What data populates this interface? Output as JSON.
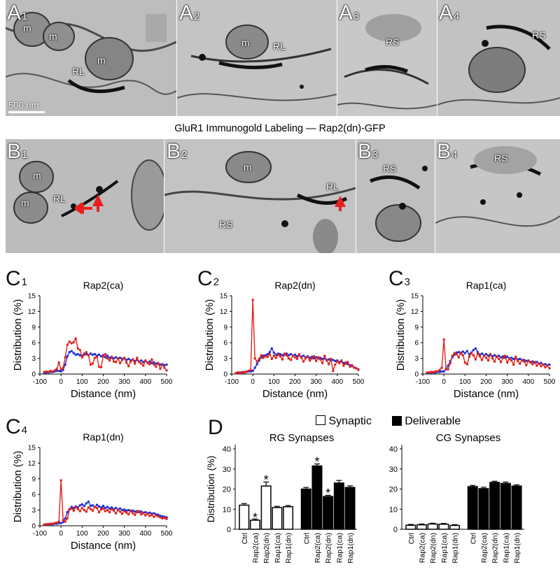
{
  "micrographs": {
    "rowA": [
      {
        "label": "A",
        "sub": "1",
        "tags": [
          "m",
          "m",
          "m",
          "RL"
        ]
      },
      {
        "label": "A",
        "sub": "2",
        "tags": [
          "m",
          "RL"
        ]
      },
      {
        "label": "A",
        "sub": "3",
        "tags": [
          "RS"
        ]
      },
      {
        "label": "A",
        "sub": "4",
        "tags": [
          "RS"
        ]
      }
    ],
    "rowB": [
      {
        "label": "B",
        "sub": "1",
        "tags": [
          "m",
          "m",
          "RL"
        ]
      },
      {
        "label": "B",
        "sub": "2",
        "tags": [
          "m",
          "RS",
          "RL"
        ]
      },
      {
        "label": "B",
        "sub": "3",
        "tags": [
          "RS"
        ]
      },
      {
        "label": "B",
        "sub": "4",
        "tags": [
          "RS"
        ]
      }
    ],
    "scale_bar": "500 nm",
    "caption": "GluR1 Immunogold Labeling — Rap2(dn)-GFP",
    "arrow_color": "#e8201e"
  },
  "line_panels": {
    "ylabel": "Distribution (%)",
    "xlabel": "Distance (nm)",
    "xticks": [
      "-100",
      "0",
      "100",
      "200",
      "300",
      "400",
      "500"
    ],
    "yticks": [
      "0",
      "3",
      "6",
      "9",
      "12",
      "15"
    ],
    "colors": {
      "red": "#e0231c",
      "blue": "#1f2fd6"
    }
  },
  "bar_legend": {
    "synaptic": "Synaptic",
    "deliverable": "Deliverable"
  },
  "chart_data": [
    {
      "panel": "C1",
      "type": "line",
      "title": "Rap2(ca)",
      "xlabel": "Distance (nm)",
      "ylabel": "Distribution (%)",
      "xlim": [
        -100,
        500
      ],
      "ylim": [
        0,
        15
      ],
      "x": [
        -80,
        -70,
        -60,
        -50,
        -40,
        -30,
        -20,
        -10,
        0,
        10,
        20,
        30,
        40,
        50,
        60,
        70,
        80,
        90,
        100,
        110,
        120,
        130,
        140,
        150,
        160,
        170,
        180,
        190,
        200,
        210,
        220,
        230,
        240,
        250,
        260,
        270,
        280,
        290,
        300,
        310,
        320,
        330,
        340,
        350,
        360,
        370,
        380,
        390,
        400,
        410,
        420,
        430,
        440,
        450,
        460,
        470,
        480,
        490,
        500
      ],
      "series": [
        {
          "color": "red",
          "values": [
            0.4,
            0.5,
            0.4,
            0.6,
            0.5,
            0.7,
            1.0,
            2.2,
            0.9,
            1.2,
            3.2,
            5.6,
            6.2,
            5.9,
            6.1,
            6.8,
            4.9,
            4.6,
            3.2,
            3.7,
            4.2,
            3.6,
            1.8,
            2.0,
            3.1,
            3.3,
            1.4,
            1.3,
            3.4,
            3.8,
            3.0,
            2.6,
            3.2,
            2.4,
            2.3,
            3.0,
            2.1,
            2.7,
            3.1,
            2.2,
            1.5,
            2.4,
            2.8,
            2.0,
            3.1,
            2.3,
            2.0,
            1.6,
            2.6,
            2.1,
            1.9,
            2.8,
            1.8,
            1.4,
            2.1,
            1.0,
            1.8,
            1.2,
            0.7
          ]
        },
        {
          "color": "blue",
          "values": [
            0.2,
            0.3,
            0.3,
            0.4,
            0.4,
            0.5,
            0.6,
            0.6,
            0.5,
            0.8,
            1.8,
            3.4,
            4.2,
            4.4,
            4.0,
            3.7,
            3.8,
            3.6,
            3.5,
            3.9,
            3.8,
            3.6,
            3.9,
            3.7,
            3.8,
            3.5,
            3.7,
            3.4,
            3.6,
            3.2,
            3.5,
            3.1,
            3.3,
            3.0,
            3.2,
            3.0,
            3.1,
            2.9,
            3.0,
            2.7,
            2.9,
            2.6,
            2.8,
            2.5,
            2.7,
            2.4,
            2.6,
            2.3,
            2.5,
            2.2,
            2.4,
            2.1,
            2.2,
            2.0,
            2.1,
            1.8,
            1.9,
            1.7,
            1.8
          ]
        }
      ]
    },
    {
      "panel": "C2",
      "type": "line",
      "title": "Rap2(dn)",
      "xlabel": "Distance (nm)",
      "ylabel": "Distribution (%)",
      "xlim": [
        -100,
        500
      ],
      "ylim": [
        0,
        15
      ],
      "x": [
        -80,
        -70,
        -60,
        -50,
        -40,
        -30,
        -20,
        -10,
        0,
        10,
        20,
        30,
        40,
        50,
        60,
        70,
        80,
        90,
        100,
        110,
        120,
        130,
        140,
        150,
        160,
        170,
        180,
        190,
        200,
        210,
        220,
        230,
        240,
        250,
        260,
        270,
        280,
        290,
        300,
        310,
        320,
        330,
        340,
        350,
        360,
        370,
        380,
        390,
        400,
        410,
        420,
        430,
        440,
        450,
        460,
        470,
        480,
        490,
        500
      ],
      "series": [
        {
          "color": "red",
          "values": [
            0.2,
            0.3,
            0.2,
            0.4,
            0.3,
            0.5,
            0.6,
            0.8,
            14.2,
            3.0,
            2.4,
            2.9,
            3.6,
            3.1,
            3.4,
            3.3,
            3.8,
            2.9,
            3.5,
            3.1,
            3.7,
            3.4,
            2.8,
            3.9,
            3.6,
            3.0,
            2.7,
            3.5,
            3.2,
            2.9,
            3.8,
            3.1,
            2.4,
            3.0,
            3.3,
            2.6,
            3.0,
            3.4,
            2.5,
            3.2,
            2.8,
            2.1,
            3.5,
            2.6,
            1.9,
            2.9,
            0.6,
            1.8,
            2.4,
            2.1,
            2.6,
            1.6,
            2.0,
            2.3,
            1.4,
            1.7,
            1.2,
            1.1,
            0.8
          ]
        },
        {
          "color": "blue",
          "values": [
            0.2,
            0.3,
            0.3,
            0.3,
            0.4,
            0.4,
            0.5,
            0.5,
            0.6,
            1.2,
            1.9,
            2.6,
            3.2,
            3.5,
            3.6,
            3.8,
            4.2,
            4.9,
            4.1,
            3.7,
            3.9,
            3.8,
            3.6,
            3.7,
            3.9,
            3.6,
            3.8,
            3.5,
            3.7,
            3.4,
            3.6,
            3.3,
            3.5,
            3.2,
            3.4,
            3.1,
            3.3,
            3.0,
            3.2,
            3.0,
            3.1,
            2.9,
            3.0,
            2.7,
            2.8,
            2.6,
            2.7,
            2.5,
            2.6,
            2.3,
            2.4,
            2.1,
            2.2,
            1.9,
            1.7,
            1.5,
            1.3,
            1.1,
            0.9
          ]
        }
      ]
    },
    {
      "panel": "C3",
      "type": "line",
      "title": "Rap1(ca)",
      "xlabel": "Distance (nm)",
      "ylabel": "Distribution (%)",
      "xlim": [
        -100,
        500
      ],
      "ylim": [
        0,
        15
      ],
      "x": [
        -80,
        -70,
        -60,
        -50,
        -40,
        -30,
        -20,
        -10,
        0,
        10,
        20,
        30,
        40,
        50,
        60,
        70,
        80,
        90,
        100,
        110,
        120,
        130,
        140,
        150,
        160,
        170,
        180,
        190,
        200,
        210,
        220,
        230,
        240,
        250,
        260,
        270,
        280,
        290,
        300,
        310,
        320,
        330,
        340,
        350,
        360,
        370,
        380,
        390,
        400,
        410,
        420,
        430,
        440,
        450,
        460,
        470,
        480,
        490,
        500
      ],
      "series": [
        {
          "color": "red",
          "values": [
            0.3,
            0.3,
            0.4,
            0.4,
            0.5,
            0.5,
            0.8,
            1.2,
            6.6,
            1.0,
            0.9,
            2.1,
            3.5,
            4.0,
            3.8,
            3.2,
            4.1,
            3.6,
            2.2,
            1.9,
            3.3,
            4.0,
            3.6,
            2.8,
            3.9,
            3.4,
            2.7,
            3.5,
            3.1,
            2.6,
            3.8,
            3.0,
            2.4,
            3.4,
            2.9,
            2.3,
            3.1,
            3.5,
            2.2,
            2.9,
            2.6,
            1.8,
            3.3,
            2.5,
            2.0,
            2.7,
            2.4,
            1.7,
            2.5,
            2.2,
            1.9,
            2.3,
            1.6,
            2.0,
            1.5,
            1.8,
            1.3,
            1.6,
            1.1
          ]
        },
        {
          "color": "blue",
          "values": [
            0.2,
            0.2,
            0.3,
            0.3,
            0.3,
            0.4,
            0.4,
            0.5,
            0.5,
            0.9,
            1.6,
            2.5,
            3.2,
            3.7,
            4.1,
            4.2,
            3.9,
            4.3,
            4.0,
            4.4,
            3.8,
            4.1,
            4.6,
            4.9,
            4.2,
            3.7,
            3.9,
            3.6,
            3.8,
            3.5,
            3.7,
            3.4,
            3.6,
            3.3,
            3.5,
            3.2,
            3.4,
            3.1,
            3.3,
            3.0,
            3.1,
            2.9,
            3.0,
            2.8,
            2.9,
            2.6,
            2.7,
            2.5,
            2.6,
            2.3,
            2.4,
            2.2,
            2.3,
            2.0,
            2.1,
            1.8,
            1.9,
            1.7,
            1.8
          ]
        }
      ]
    },
    {
      "panel": "C4",
      "type": "line",
      "title": "Rap1(dn)",
      "xlabel": "Distance (nm)",
      "ylabel": "Distribution (%)",
      "xlim": [
        -100,
        500
      ],
      "ylim": [
        0,
        15
      ],
      "x": [
        -80,
        -70,
        -60,
        -50,
        -40,
        -30,
        -20,
        -10,
        0,
        10,
        20,
        30,
        40,
        50,
        60,
        70,
        80,
        90,
        100,
        110,
        120,
        130,
        140,
        150,
        160,
        170,
        180,
        190,
        200,
        210,
        220,
        230,
        240,
        250,
        260,
        270,
        280,
        290,
        300,
        310,
        320,
        330,
        340,
        350,
        360,
        370,
        380,
        390,
        400,
        410,
        420,
        430,
        440,
        450,
        460,
        470,
        480,
        490,
        500
      ],
      "series": [
        {
          "color": "red",
          "values": [
            0.2,
            0.3,
            0.3,
            0.4,
            0.4,
            0.5,
            0.6,
            0.8,
            8.7,
            1.1,
            0.8,
            1.4,
            3.1,
            3.3,
            2.9,
            3.6,
            3.2,
            2.8,
            3.4,
            3.0,
            2.7,
            3.5,
            3.2,
            2.9,
            3.6,
            3.4,
            2.6,
            3.1,
            3.3,
            2.8,
            3.0,
            2.6,
            3.2,
            2.9,
            2.4,
            3.0,
            2.7,
            2.3,
            2.8,
            2.5,
            2.2,
            2.9,
            2.4,
            2.1,
            2.6,
            2.8,
            2.2,
            2.4,
            2.0,
            2.3,
            1.9,
            2.1,
            1.7,
            2.0,
            1.8,
            1.6,
            1.4,
            1.5,
            1.3
          ]
        },
        {
          "color": "blue",
          "values": [
            0.2,
            0.2,
            0.3,
            0.3,
            0.3,
            0.4,
            0.4,
            0.5,
            0.5,
            0.7,
            1.4,
            2.6,
            3.2,
            3.6,
            3.4,
            3.7,
            3.5,
            3.9,
            4.1,
            3.8,
            4.3,
            4.6,
            3.8,
            3.9,
            3.6,
            4.0,
            3.7,
            3.5,
            3.8,
            3.4,
            3.6,
            3.3,
            3.5,
            3.2,
            3.4,
            3.1,
            3.3,
            3.0,
            3.1,
            2.9,
            3.0,
            2.8,
            2.9,
            2.7,
            2.8,
            2.6,
            2.7,
            2.5,
            2.6,
            2.4,
            2.5,
            2.3,
            2.4,
            2.2,
            2.1,
            1.9,
            1.8,
            1.7,
            1.6
          ]
        }
      ]
    },
    {
      "panel": "D-RG",
      "type": "bar",
      "title": "RG Synapses",
      "ylabel": "Distribution (%)",
      "ylim": [
        0,
        40
      ],
      "yticks": [
        "0",
        "10",
        "20",
        "30",
        "40"
      ],
      "categories": [
        "Ctrl",
        "Rap2(ca)",
        "Rap2(dn)",
        "Rap1(ca)",
        "Rap1(dn)"
      ],
      "series": [
        {
          "name": "Synaptic",
          "fill": "white",
          "values": [
            12,
            4.5,
            21.5,
            10.8,
            11.2
          ],
          "errors": [
            0.8,
            0.6,
            2.0,
            0.6,
            0.6
          ],
          "significant": [
            false,
            true,
            true,
            false,
            false
          ]
        },
        {
          "name": "Deliverable",
          "fill": "black",
          "values": [
            20,
            31.5,
            16.3,
            23,
            20.8
          ],
          "errors": [
            0.8,
            1.0,
            0.6,
            1.3,
            0.8
          ],
          "significant": [
            false,
            true,
            true,
            false,
            false
          ]
        }
      ],
      "star": "*"
    },
    {
      "panel": "D-CG",
      "type": "bar",
      "title": "CG Synapses",
      "ylabel": "",
      "ylim": [
        0,
        40
      ],
      "yticks": [
        "0",
        "10",
        "20",
        "30",
        "40"
      ],
      "categories": [
        "Ctrl",
        "Rap2(ca)",
        "Rap2(dn)",
        "Rap1(ca)",
        "Rap1(dn)"
      ],
      "series": [
        {
          "name": "Synaptic",
          "fill": "white",
          "values": [
            2.0,
            2.2,
            2.6,
            2.5,
            1.9
          ],
          "errors": [
            0.4,
            0.4,
            0.4,
            0.4,
            0.4
          ],
          "significant": [
            false,
            false,
            false,
            false,
            false
          ]
        },
        {
          "name": "Deliverable",
          "fill": "black",
          "values": [
            21.2,
            20.2,
            23.3,
            22.8,
            21.5
          ],
          "errors": [
            0.6,
            0.7,
            0.6,
            0.7,
            0.6
          ],
          "significant": [
            false,
            false,
            false,
            false,
            false
          ]
        }
      ],
      "star": "*"
    }
  ]
}
